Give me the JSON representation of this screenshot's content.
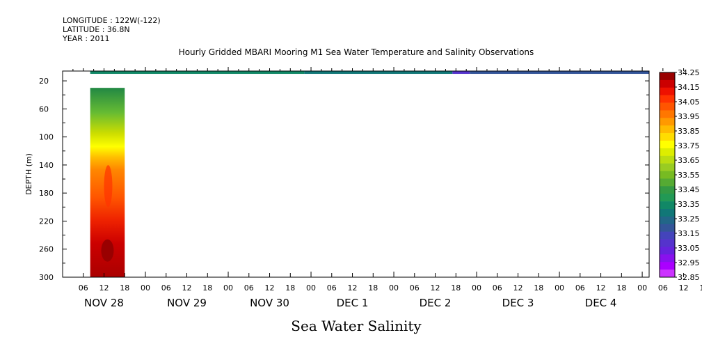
{
  "header": {
    "longitude": "LONGITUDE : 122W(-122)",
    "latitude": "LATITUDE : 36.8N",
    "year": "YEAR : 2011"
  },
  "chart_data": {
    "type": "heatmap",
    "title": "Hourly Gridded MBARI Mooring M1 Sea Water Temperature and Salinity Observations",
    "subtitle": "Sea Water Salinity",
    "ylabel": "DEPTH (m)",
    "yticks": [
      20,
      60,
      100,
      140,
      180,
      220,
      260,
      300
    ],
    "ylim": [
      300,
      6
    ],
    "xlim_hours": [
      0,
      170
    ],
    "hour_ticks": [
      "06",
      "12",
      "18",
      "00",
      "06",
      "12",
      "18",
      "00",
      "06",
      "12",
      "18",
      "00",
      "06",
      "12",
      "18",
      "00",
      "06",
      "12",
      "18",
      "00",
      "06",
      "12",
      "18",
      "00",
      "06",
      "12",
      "18",
      "00",
      "06",
      "12",
      "18",
      "00"
    ],
    "day_labels": [
      "NOV 28",
      "NOV 29",
      "NOV 30",
      "DEC  1",
      "DEC  2",
      "DEC  3",
      "DEC  4"
    ],
    "colorbar": {
      "labels": [
        "34.25",
        "34.15",
        "34.05",
        "33.95",
        "33.85",
        "33.75",
        "33.65",
        "33.55",
        "33.45",
        "33.35",
        "33.25",
        "33.15",
        "33.05",
        "32.95",
        "32.85"
      ],
      "colors": [
        "#990000",
        "#cc0000",
        "#ee1100",
        "#ff3300",
        "#ff5500",
        "#ff7700",
        "#ff9900",
        "#ffbb00",
        "#ffdd00",
        "#ffff00",
        "#ddee00",
        "#bbdd11",
        "#99cc22",
        "#77bb22",
        "#55aa33",
        "#339944",
        "#229955",
        "#118866",
        "#117777",
        "#226688",
        "#335599",
        "#4444bb",
        "#5533cc",
        "#6622dd",
        "#8811ee",
        "#aa00ff",
        "#cc33ff"
      ]
    },
    "surface_band": {
      "depth_m": [
        6,
        10
      ],
      "segments": [
        {
          "start_hour": 8,
          "end_hour": 70,
          "value": 33.33
        },
        {
          "start_hour": 70,
          "end_hour": 113,
          "value": 33.28
        },
        {
          "start_hour": 113,
          "end_hour": 118,
          "value": 33.08
        },
        {
          "start_hour": 118,
          "end_hour": 170,
          "value": 33.2
        }
      ]
    },
    "profile": {
      "start_hour": 8,
      "end_hour": 18,
      "depth_top_m": 30,
      "depths_m": [
        30,
        40,
        50,
        60,
        70,
        80,
        90,
        100,
        110,
        120,
        130,
        140,
        150,
        160,
        170,
        180,
        190,
        200,
        210,
        220,
        230,
        240,
        250,
        260,
        270,
        280,
        290,
        300
      ],
      "values": [
        33.33,
        33.37,
        33.42,
        33.46,
        33.52,
        33.58,
        33.64,
        33.7,
        33.76,
        33.82,
        33.88,
        33.95,
        33.98,
        34.0,
        34.02,
        34.03,
        34.04,
        34.06,
        34.09,
        34.12,
        34.15,
        34.18,
        34.2,
        34.22,
        34.23,
        34.23,
        34.22,
        34.2
      ]
    }
  }
}
